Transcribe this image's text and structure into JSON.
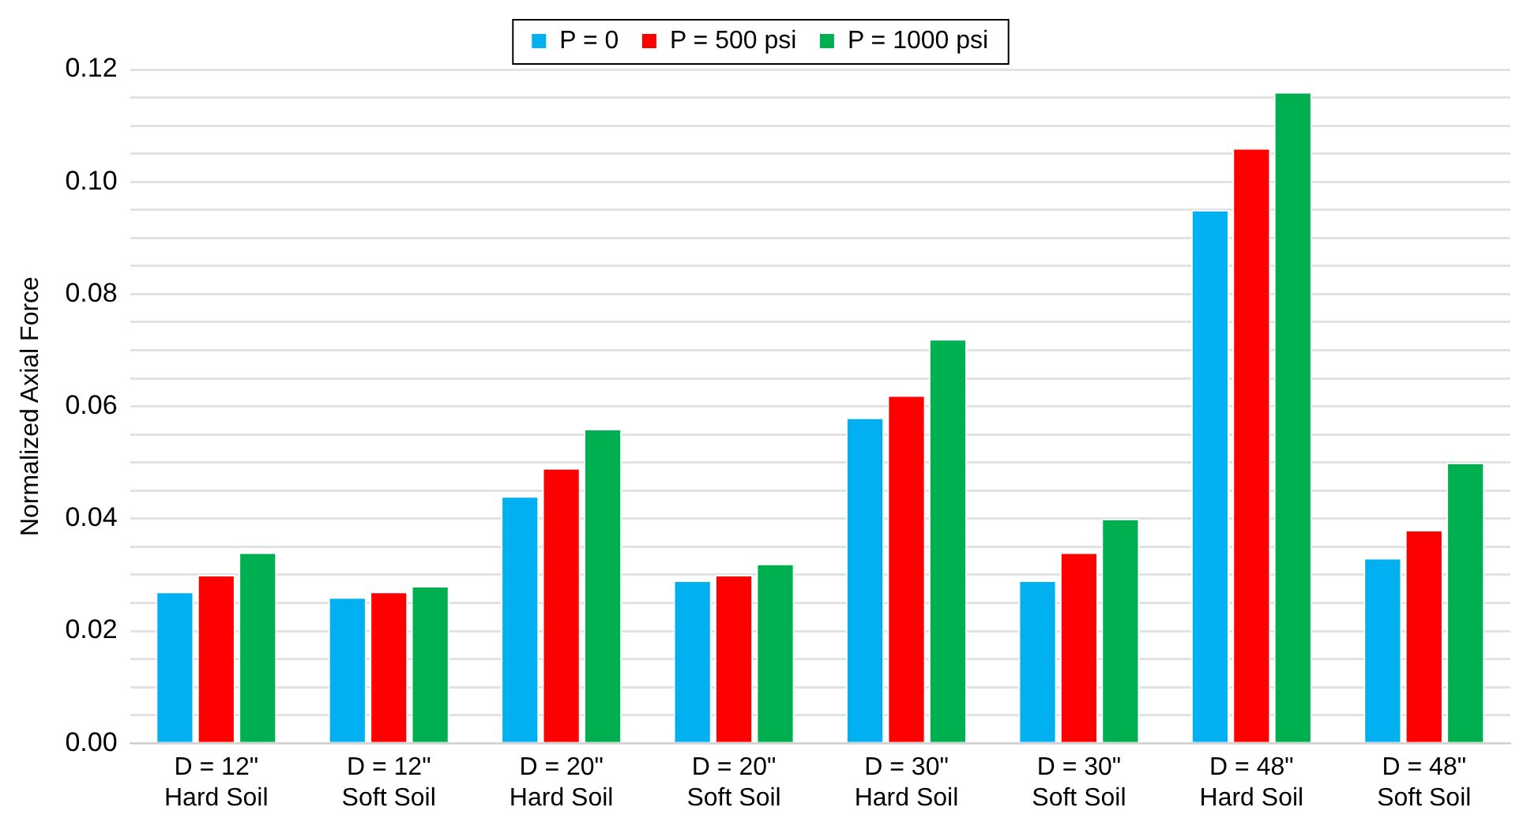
{
  "chart_data": {
    "type": "bar",
    "ylabel": "Normalized Axial Force",
    "categories": [
      "D = 12\"\nHard Soil",
      "D = 12\"\nSoft Soil",
      "D = 20\"\nHard Soil",
      "D = 20\"\nSoft Soil",
      "D = 30\"\nHard Soil",
      "D = 30\"\nSoft Soil",
      "D = 48\"\nHard Soil",
      "D = 48\"\nSoft Soil"
    ],
    "series": [
      {
        "name": "P = 0",
        "color": "#00b0f0",
        "values": [
          0.027,
          0.026,
          0.044,
          0.029,
          0.058,
          0.029,
          0.095,
          0.033
        ]
      },
      {
        "name": "P = 500 psi",
        "color": "#ff0000",
        "values": [
          0.03,
          0.027,
          0.049,
          0.03,
          0.062,
          0.034,
          0.106,
          0.038
        ]
      },
      {
        "name": "P = 1000 psi",
        "color": "#00b050",
        "values": [
          0.034,
          0.028,
          0.056,
          0.032,
          0.072,
          0.04,
          0.116,
          0.05
        ]
      }
    ],
    "ylim": [
      0,
      0.12
    ],
    "yticks": [
      {
        "value": 0,
        "label": "0.00"
      },
      {
        "value": 0.005,
        "label": null
      },
      {
        "value": 0.01,
        "label": null
      },
      {
        "value": 0.015,
        "label": null
      },
      {
        "value": 0.02,
        "label": "0.02"
      },
      {
        "value": 0.025,
        "label": null
      },
      {
        "value": 0.03,
        "label": null
      },
      {
        "value": 0.035,
        "label": null
      },
      {
        "value": 0.04,
        "label": "0.04"
      },
      {
        "value": 0.045,
        "label": null
      },
      {
        "value": 0.05,
        "label": null
      },
      {
        "value": 0.055,
        "label": null
      },
      {
        "value": 0.06,
        "label": "0.06"
      },
      {
        "value": 0.065,
        "label": null
      },
      {
        "value": 0.07,
        "label": null
      },
      {
        "value": 0.075,
        "label": null
      },
      {
        "value": 0.08,
        "label": "0.08"
      },
      {
        "value": 0.085,
        "label": null
      },
      {
        "value": 0.09,
        "label": null
      },
      {
        "value": 0.095,
        "label": null
      },
      {
        "value": 0.1,
        "label": "0.10"
      },
      {
        "value": 0.105,
        "label": null
      },
      {
        "value": 0.11,
        "label": null
      },
      {
        "value": 0.115,
        "label": null
      },
      {
        "value": 0.12,
        "label": "0.12"
      }
    ],
    "grid": "y",
    "legend": "top"
  }
}
